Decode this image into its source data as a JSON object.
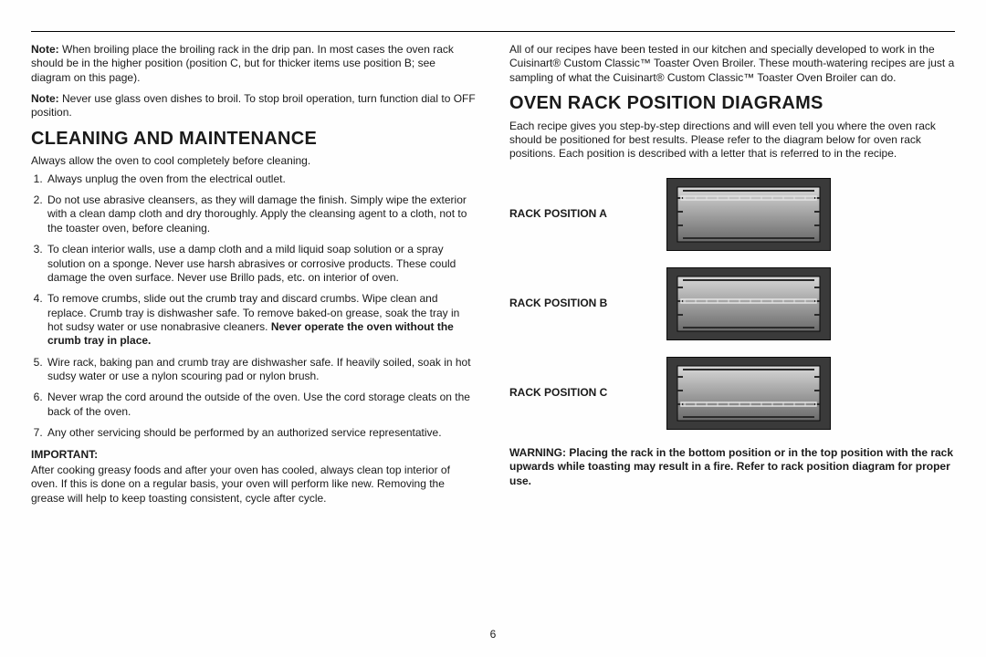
{
  "page_number": "6",
  "left": {
    "note1_label": "Note:",
    "note1_body": " When broiling place the broiling rack in the drip pan. In most cases the oven rack should be in the higher position (position C, but for thicker items use position B; see diagram on this page).",
    "note2_label": "Note:",
    "note2_body": " Never use glass oven dishes to broil. To stop broil operation, turn function dial to OFF position.",
    "heading": "CLEANING AND MAINTENANCE",
    "intro": "Always allow the oven to cool completely before cleaning.",
    "items": [
      "Always unplug the oven from the electrical outlet.",
      "Do not use abrasive cleansers, as they will damage the finish. Simply wipe the exterior with a clean damp cloth and dry thoroughly. Apply the cleansing agent to a cloth, not to the toaster oven, before cleaning.",
      "To clean interior walls, use a damp cloth and a mild liquid soap solution or a spray solution on a sponge. Never use harsh abrasives or corrosive products. These could damage the oven surface. Never use Brillo pads, etc. on interior of oven.",
      "",
      "Wire rack, baking pan and crumb tray are dishwasher safe. If heavily soiled, soak in hot sudsy water or use a nylon scouring pad or nylon brush.",
      "Never wrap the cord around the outside of the oven. Use the cord storage cleats on the back of the oven.",
      "Any other servicing should be performed by an authorized service representative."
    ],
    "item4_a": "To remove crumbs, slide out the crumb tray and discard crumbs. Wipe clean and replace. Crumb tray is dishwasher safe. To remove baked-on grease, soak the tray in hot sudsy water or use nonabrasive cleaners. ",
    "item4_b": "Never operate the oven without the crumb tray in place.",
    "important_label": "IMPORTANT:",
    "important_body": "After cooking greasy foods and after your oven has cooled, always clean top interior of oven. If this is done on a regular basis, your oven will perform like new. Removing the grease will help to keep toasting consistent, cycle after cycle."
  },
  "right": {
    "intro": "All of our recipes have been tested in our kitchen and specially developed to work in the Cuisinart® Custom Classic™ Toaster Oven Broiler. These mouth-watering recipes are just a sampling of what the Cuisinart® Custom Classic™ Toaster Oven Broiler can do.",
    "heading": "OVEN RACK POSITION DIAGRAMS",
    "desc": "Each recipe gives you step-by-step directions and will even tell you where the oven rack should be positioned for best results. Please refer to the diagram below for oven rack positions. Each position is described with a letter that is referred to in the recipe.",
    "rack_a": "RACK POSITION A",
    "rack_b": "RACK POSITION B",
    "rack_c": "RACK POSITION C",
    "warning": "WARNING: Placing the rack in the bottom position or in the top position with the rack upwards while toasting may result in a fire. Refer to rack position diagram for proper use."
  },
  "oven_svg": {
    "outer_stroke": "#0a0a0a",
    "outer_fill": "#3a3a3a",
    "inner_top": "#d8d8d8",
    "inner_bottom": "#6a6a6a",
    "rail": "#2a2a2a",
    "rack": "#e4e4e4",
    "rack_positions": {
      "A": 22,
      "B": 37,
      "C": 52
    }
  }
}
